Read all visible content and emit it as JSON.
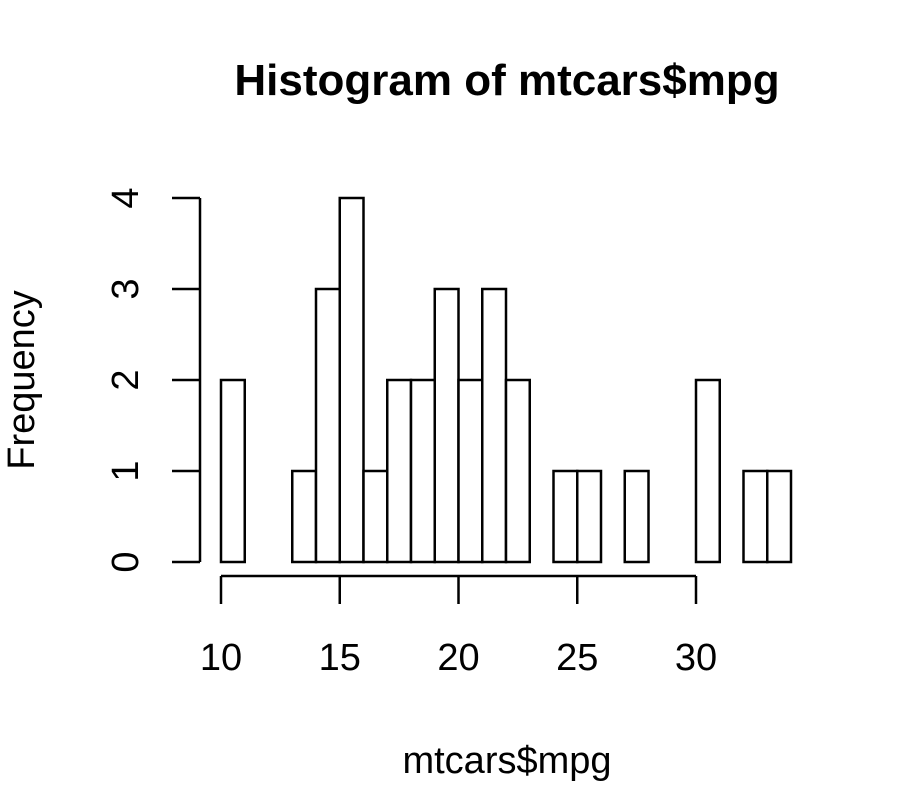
{
  "chart_data": {
    "type": "bar",
    "title": "Histogram of mtcars$mpg",
    "xlabel": "mtcars$mpg",
    "ylabel": "Frequency",
    "bins": [
      {
        "start": 10,
        "end": 11,
        "count": 2
      },
      {
        "start": 11,
        "end": 12,
        "count": 0
      },
      {
        "start": 12,
        "end": 13,
        "count": 0
      },
      {
        "start": 13,
        "end": 14,
        "count": 1
      },
      {
        "start": 14,
        "end": 15,
        "count": 3
      },
      {
        "start": 15,
        "end": 16,
        "count": 4
      },
      {
        "start": 16,
        "end": 17,
        "count": 1
      },
      {
        "start": 17,
        "end": 18,
        "count": 2
      },
      {
        "start": 18,
        "end": 19,
        "count": 2
      },
      {
        "start": 19,
        "end": 20,
        "count": 3
      },
      {
        "start": 20,
        "end": 21,
        "count": 2
      },
      {
        "start": 21,
        "end": 22,
        "count": 3
      },
      {
        "start": 22,
        "end": 23,
        "count": 2
      },
      {
        "start": 23,
        "end": 24,
        "count": 0
      },
      {
        "start": 24,
        "end": 25,
        "count": 1
      },
      {
        "start": 25,
        "end": 26,
        "count": 1
      },
      {
        "start": 26,
        "end": 27,
        "count": 0
      },
      {
        "start": 27,
        "end": 28,
        "count": 1
      },
      {
        "start": 28,
        "end": 29,
        "count": 0
      },
      {
        "start": 29,
        "end": 30,
        "count": 0
      },
      {
        "start": 30,
        "end": 31,
        "count": 2
      },
      {
        "start": 31,
        "end": 32,
        "count": 0
      },
      {
        "start": 32,
        "end": 33,
        "count": 1
      },
      {
        "start": 33,
        "end": 34,
        "count": 1
      }
    ],
    "x_ticks": [
      "10",
      "15",
      "20",
      "25",
      "30"
    ],
    "y_ticks": [
      "0",
      "1",
      "2",
      "3",
      "4"
    ],
    "xlim": [
      10,
      34
    ],
    "ylim": [
      0,
      4
    ],
    "grid": false,
    "legend": false,
    "bar_fill": "#ffffff",
    "bar_stroke": "#000000"
  }
}
